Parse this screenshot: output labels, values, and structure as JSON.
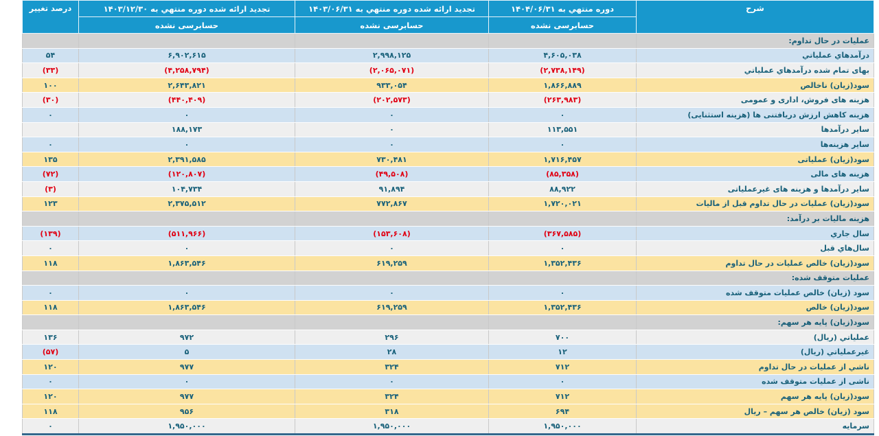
{
  "colors": {
    "header_bg": "#1898cd",
    "header_text": "#ffffff",
    "row_blue": "#cfe1f1",
    "row_gray": "#efefef",
    "row_yellow": "#fbe3a1",
    "row_section": "#d2d2d2",
    "text_teal": "#19617a",
    "text_negative": "#e00013",
    "bottom_border": "#33678c"
  },
  "header": {
    "description": "شرح",
    "percent_change": "درصد تغییر",
    "columns": [
      {
        "period": "دوره منتهي به ۱۴۰۴/۰۶/۳۱",
        "status": "حسابرسی نشده"
      },
      {
        "period": "تجدید ارائه شده دوره منتهي به ۱۴۰۳/۰۶/۳۱",
        "status": "حسابرسی نشده"
      },
      {
        "period": "تجدید ارائه شده دوره منتهي به ۱۴۰۳/۱۲/۳۰",
        "status": "حسابرسی نشده"
      }
    ]
  },
  "rows": [
    {
      "type": "section",
      "label": "عملیات در حال تداوم:",
      "v1": "",
      "v2": "",
      "v3": "",
      "pct": ""
    },
    {
      "type": "blue",
      "label": "درآمدهاي عملیاتي",
      "v1": "۴,۶۰۵,۰۳۸",
      "v2": "۲,۹۹۸,۱۲۵",
      "v3": "۶,۹۰۲,۶۱۵",
      "pct": "۵۴"
    },
    {
      "type": "gray",
      "label": "بهای تمام شده درآمدهاي عملیاتي",
      "v1": "(۲,۷۳۸,۱۴۹)",
      "v2": "(۲,۰۶۵,۰۷۱)",
      "v3": "(۴,۲۵۸,۷۹۴)",
      "pct": "(۳۳)"
    },
    {
      "type": "yellow",
      "label": "سود(زیان) ناخالص",
      "v1": "۱,۸۶۶,۸۸۹",
      "v2": "۹۳۳,۰۵۴",
      "v3": "۲,۶۴۳,۸۲۱",
      "pct": "۱۰۰"
    },
    {
      "type": "gray",
      "label": "هزینه های فروش، اداری و عمومی",
      "v1": "(۲۶۳,۹۸۳)",
      "v2": "(۲۰۲,۵۷۳)",
      "v3": "(۴۴۰,۴۰۹)",
      "pct": "(۳۰)"
    },
    {
      "type": "blue",
      "label": "هزینه کاهش ارزش دریافتنی ها (هزینه استثنایی)",
      "v1": "۰",
      "v2": "۰",
      "v3": "۰",
      "pct": "۰"
    },
    {
      "type": "gray",
      "label": "سایر درآمدها",
      "v1": "۱۱۳,۵۵۱",
      "v2": "۰",
      "v3": "۱۸۸,۱۷۳",
      "pct": ""
    },
    {
      "type": "blue",
      "label": "سایر هزینه‌ها",
      "v1": "۰",
      "v2": "۰",
      "v3": "۰",
      "pct": "۰"
    },
    {
      "type": "yellow",
      "label": "سود(زیان) عملیاتی",
      "v1": "۱,۷۱۶,۴۵۷",
      "v2": "۷۳۰,۴۸۱",
      "v3": "۲,۳۹۱,۵۸۵",
      "pct": "۱۳۵"
    },
    {
      "type": "blue",
      "label": "هزینه های مالی",
      "v1": "(۸۵,۳۵۸)",
      "v2": "(۴۹,۵۰۸)",
      "v3": "(۱۲۰,۸۰۷)",
      "pct": "(۷۲)"
    },
    {
      "type": "gray",
      "label": "سایر درآمدها و هزینه های غیرعملیاتی",
      "v1": "۸۸,۹۲۲",
      "v2": "۹۱,۸۹۴",
      "v3": "۱۰۴,۷۳۴",
      "pct": "(۳)"
    },
    {
      "type": "yellow",
      "label": "سود(زیان) عملیات در حال تداوم قبل از مالیات",
      "v1": "۱,۷۲۰,۰۲۱",
      "v2": "۷۷۲,۸۶۷",
      "v3": "۲,۳۷۵,۵۱۲",
      "pct": "۱۲۳"
    },
    {
      "type": "section",
      "label": "هزینه مالیات بر درآمد:",
      "v1": "",
      "v2": "",
      "v3": "",
      "pct": ""
    },
    {
      "type": "blue",
      "label": "سال جاري",
      "v1": "(۳۶۷,۵۸۵)",
      "v2": "(۱۵۳,۶۰۸)",
      "v3": "(۵۱۱,۹۶۶)",
      "pct": "(۱۳۹)"
    },
    {
      "type": "gray",
      "label": "سال‌هاي قبل",
      "v1": "۰",
      "v2": "۰",
      "v3": "۰",
      "pct": "۰"
    },
    {
      "type": "yellow",
      "label": "سود(زیان) خالص عملیات در حال تداوم",
      "v1": "۱,۳۵۲,۴۳۶",
      "v2": "۶۱۹,۲۵۹",
      "v3": "۱,۸۶۳,۵۴۶",
      "pct": "۱۱۸"
    },
    {
      "type": "section",
      "label": "عملیات متوقف شده:",
      "v1": "",
      "v2": "",
      "v3": "",
      "pct": ""
    },
    {
      "type": "blue",
      "label": "سود (زیان) خالص عملیات متوقف شده",
      "v1": "۰",
      "v2": "۰",
      "v3": "۰",
      "pct": "۰"
    },
    {
      "type": "yellow",
      "label": "سود(زیان) خالص",
      "v1": "۱,۳۵۲,۴۳۶",
      "v2": "۶۱۹,۲۵۹",
      "v3": "۱,۸۶۳,۵۴۶",
      "pct": "۱۱۸"
    },
    {
      "type": "section",
      "label": "سود(زیان) پایه هر سهم:",
      "v1": "",
      "v2": "",
      "v3": "",
      "pct": ""
    },
    {
      "type": "gray",
      "label": "عملیاتي (ریال)",
      "v1": "۷۰۰",
      "v2": "۲۹۶",
      "v3": "۹۷۲",
      "pct": "۱۳۶"
    },
    {
      "type": "blue",
      "label": "غیرعملیاتي (ریال)",
      "v1": "۱۲",
      "v2": "۲۸",
      "v3": "۵",
      "pct": "(۵۷)"
    },
    {
      "type": "yellow",
      "label": "ناشي از عملیات در حال تداوم",
      "v1": "۷۱۲",
      "v2": "۳۲۴",
      "v3": "۹۷۷",
      "pct": "۱۲۰"
    },
    {
      "type": "blue",
      "label": "ناشی از عملیات متوقف شده",
      "v1": "۰",
      "v2": "۰",
      "v3": "۰",
      "pct": "۰"
    },
    {
      "type": "yellow",
      "label": "سود(زیان) پایه هر سهم",
      "v1": "۷۱۲",
      "v2": "۳۲۴",
      "v3": "۹۷۷",
      "pct": "۱۲۰"
    },
    {
      "type": "yellow",
      "label": "سود (زیان) خالص هر سهم – ریال",
      "v1": "۶۹۴",
      "v2": "۳۱۸",
      "v3": "۹۵۶",
      "pct": "۱۱۸"
    },
    {
      "type": "gray",
      "label": "سرمایه",
      "v1": "۱,۹۵۰,۰۰۰",
      "v2": "۱,۹۵۰,۰۰۰",
      "v3": "۱,۹۵۰,۰۰۰",
      "pct": "۰"
    }
  ]
}
